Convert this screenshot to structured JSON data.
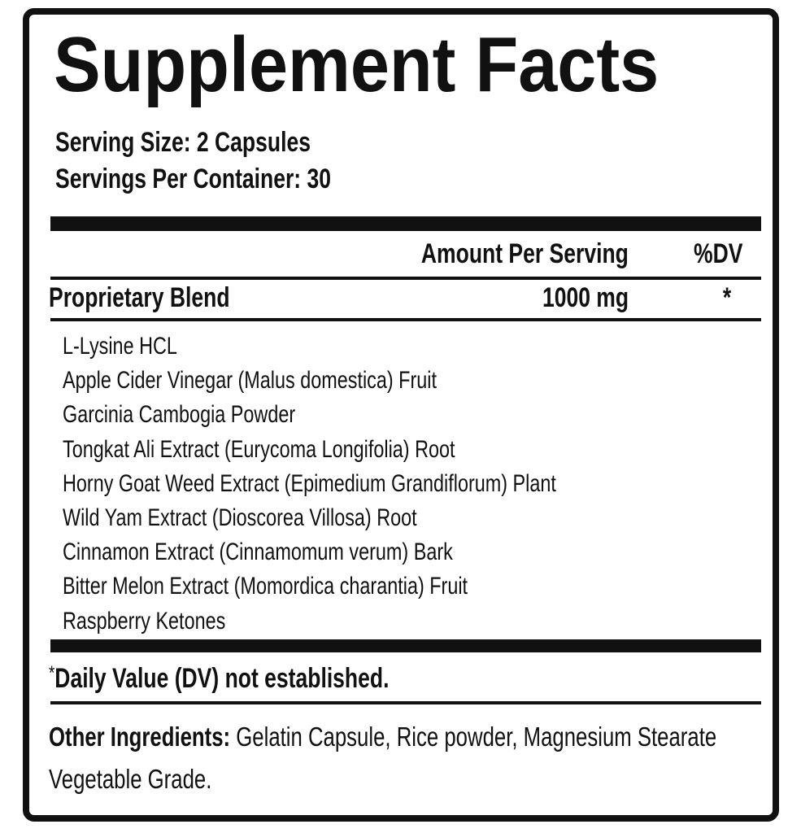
{
  "title": "Supplement Facts",
  "serving_size": "Serving Size: 2 Capsules",
  "servings_per_container": "Servings Per Container: 30",
  "table": {
    "header": [
      "Amount Per Serving",
      "%DV"
    ],
    "rows": [
      [
        "Proprietary Blend",
        "1000 mg",
        "*"
      ]
    ]
  },
  "ingredients": [
    "L-Lysine HCL",
    "Apple Cider Vinegar (Malus domestica) Fruit",
    "Garcinia Cambogia Powder",
    "Tongkat Ali Extract (Eurycoma Longifolia) Root",
    "Horny Goat Weed Extract (Epimedium Grandiflorum) Plant",
    "Wild Yam Extract (Dioscorea Villosa) Root",
    "Cinnamon Extract (Cinnamomum verum) Bark",
    "Bitter Melon Extract (Momordica charantia) Fruit",
    "Raspberry Ketones"
  ],
  "footnote": {
    "marker": "*",
    "text": "Daily Value (DV) not established."
  },
  "other_ingredients": {
    "label": "Other Ingredients:",
    "text": "Gelatin Capsule, Rice powder, Magnesium Stearate Vegetable Grade."
  }
}
